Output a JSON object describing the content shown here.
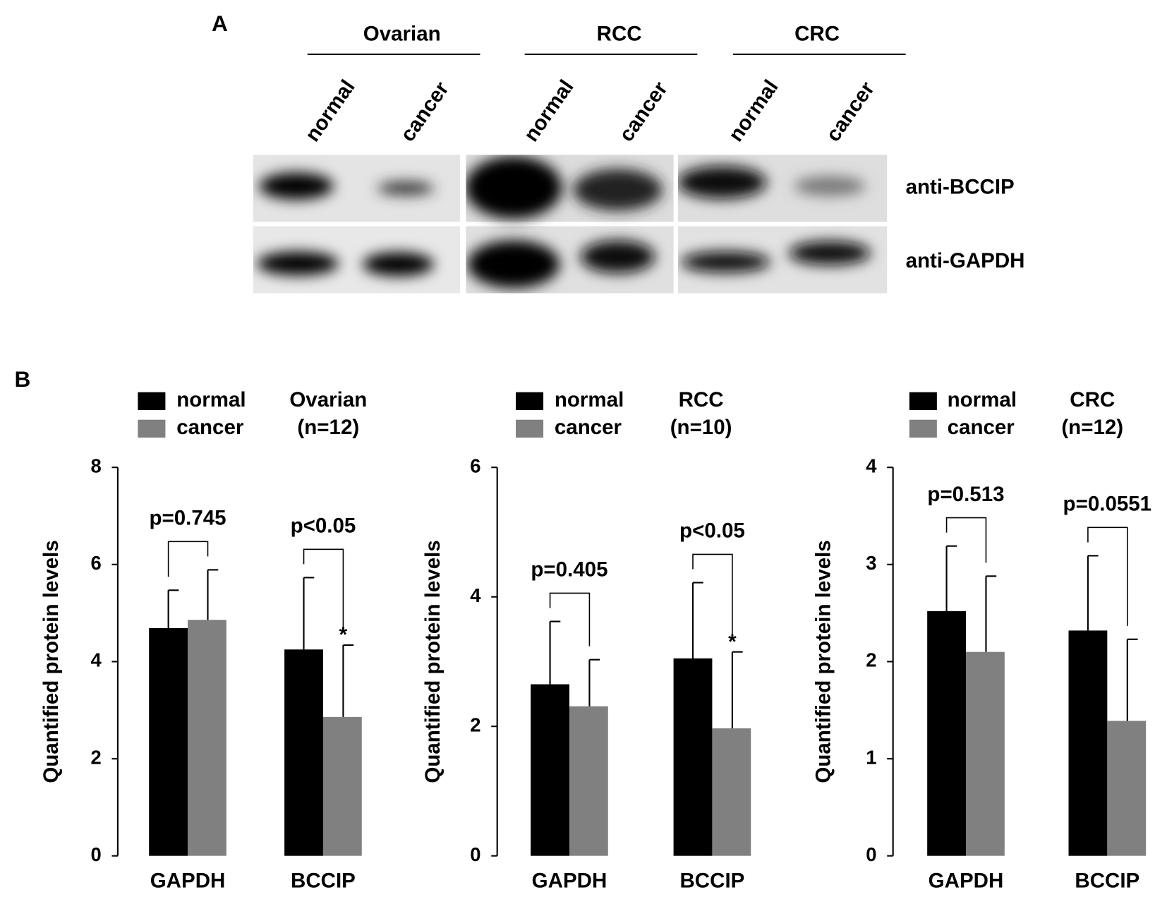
{
  "panel_a": {
    "label": "A",
    "groups": [
      "Ovarian",
      "RCC",
      "CRC"
    ],
    "lanes": [
      "normal",
      "cancer",
      "normal",
      "cancer",
      "normal",
      "cancer"
    ],
    "rows": [
      "anti-BCCIP",
      "anti-GAPDH"
    ]
  },
  "panel_b_label": "B",
  "chart_data": [
    {
      "type": "bar",
      "title": "Ovarian",
      "subtitle": "(n=12)",
      "y_label": "Quantified protein levels",
      "categories": [
        "GAPDH",
        "BCCIP"
      ],
      "ylim": [
        0,
        8
      ],
      "yticks": [
        0,
        2,
        4,
        6,
        8
      ],
      "series": [
        {
          "name": "normal",
          "color": "#000000",
          "values": [
            4.69,
            4.25
          ],
          "errors": [
            0.78,
            1.48
          ]
        },
        {
          "name": "cancer",
          "color": "#808080",
          "values": [
            4.86,
            2.86
          ],
          "errors": [
            1.03,
            1.48
          ]
        }
      ],
      "annotations": [
        {
          "text": "p=0.745",
          "category": 0
        },
        {
          "text": "p<0.05",
          "category": 1
        },
        {
          "text": "*",
          "category": 1,
          "series": 1
        }
      ]
    },
    {
      "type": "bar",
      "title": "RCC",
      "subtitle": "(n=10)",
      "y_label": "Quantified protein levels",
      "categories": [
        "GAPDH",
        "BCCIP"
      ],
      "ylim": [
        0,
        6
      ],
      "yticks": [
        0,
        2,
        4,
        6
      ],
      "series": [
        {
          "name": "normal",
          "color": "#000000",
          "values": [
            2.65,
            3.05
          ],
          "errors": [
            0.97,
            1.17
          ]
        },
        {
          "name": "cancer",
          "color": "#808080",
          "values": [
            2.31,
            1.97
          ],
          "errors": [
            0.72,
            1.18
          ]
        }
      ],
      "annotations": [
        {
          "text": "p=0.405",
          "category": 0
        },
        {
          "text": "p<0.05",
          "category": 1
        },
        {
          "text": "*",
          "category": 1,
          "series": 1
        }
      ]
    },
    {
      "type": "bar",
      "title": "CRC",
      "subtitle": "(n=12)",
      "y_label": "Quantified protein levels",
      "categories": [
        "GAPDH",
        "BCCIP"
      ],
      "ylim": [
        0,
        4
      ],
      "yticks": [
        0,
        1,
        2,
        3,
        4
      ],
      "series": [
        {
          "name": "normal",
          "color": "#000000",
          "values": [
            2.52,
            2.32
          ],
          "errors": [
            0.67,
            0.77
          ]
        },
        {
          "name": "cancer",
          "color": "#808080",
          "values": [
            2.1,
            1.39
          ],
          "errors": [
            0.78,
            0.84
          ]
        }
      ],
      "annotations": [
        {
          "text": "p=0.513",
          "category": 0
        },
        {
          "text": "p=0.0551",
          "category": 1
        }
      ]
    }
  ]
}
